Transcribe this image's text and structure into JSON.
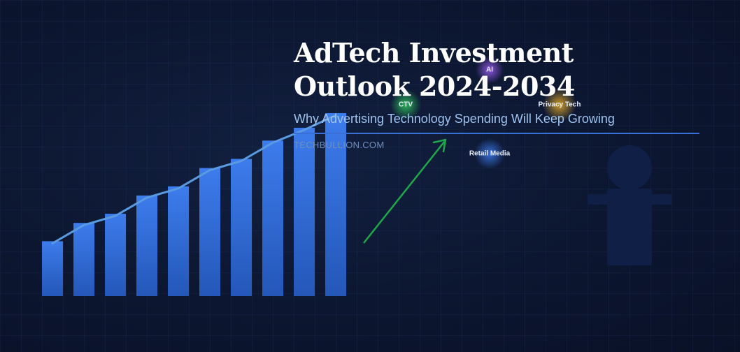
{
  "title_line1": "AdTech Investment",
  "title_line2": "Outlook 2024-2034",
  "subtitle": "Why Advertising Technology Spending Will Keep Growing",
  "site": "TECHBULLION.COM",
  "tags": [
    {
      "label": "CTV",
      "color": "#23b04a"
    },
    {
      "label": "AI",
      "color": "#8a4fe0"
    },
    {
      "label": "Privacy Tech",
      "color": "#d4a020"
    },
    {
      "label": "Retail Media",
      "color": "#2f66d8"
    }
  ],
  "bars": {
    "relative_heights": [
      0.3,
      0.4,
      0.45,
      0.55,
      0.6,
      0.7,
      0.75,
      0.85,
      0.92,
      1.0
    ],
    "color": "#3b7ae8"
  },
  "arrow_color": "#1fa84a",
  "figure_color": "#0f1f45"
}
